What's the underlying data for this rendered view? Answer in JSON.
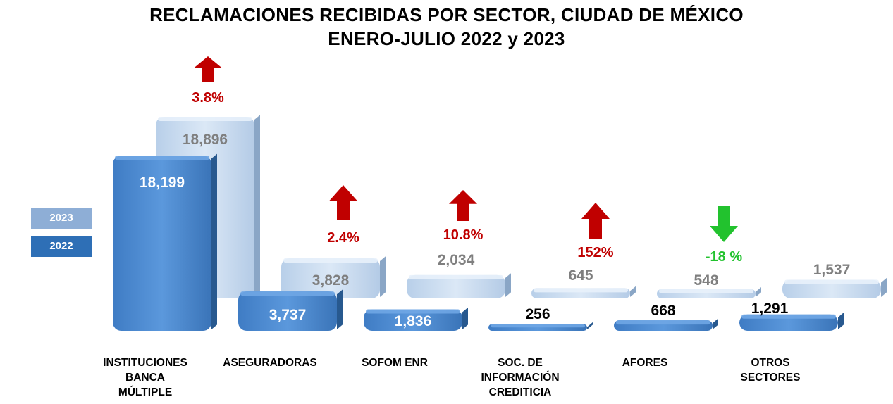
{
  "title": {
    "line1": "RECLAMACIONES RECIBIDAS POR SECTOR, CIUDAD DE MÉXICO",
    "line2": "ENERO-JULIO 2022 y 2023"
  },
  "colors": {
    "y2022": "#4a86cc",
    "y2023": "#c9dcf2",
    "up": "#c00000",
    "down": "#22c22e"
  },
  "chart_data": {
    "type": "bar",
    "title": "RECLAMACIONES RECIBIDAS POR SECTOR, CIUDAD DE MÉXICO ENERO-JULIO 2022 y 2023",
    "categories": [
      "INSTITUCIONES BANCA MÚLTIPLE",
      "ASEGURADORAS",
      "SOFOM ENR",
      "SOC. DE INFORMACIÓN CREDITICIA",
      "AFORES",
      "OTROS SECTORES"
    ],
    "series": [
      {
        "name": "2022",
        "values": [
          18199,
          3737,
          1836,
          256,
          668,
          1291
        ],
        "labels": [
          "18,199",
          "3,737",
          "1,836",
          "256",
          "668",
          "1,291"
        ]
      },
      {
        "name": "2023",
        "values": [
          18896,
          3828,
          2034,
          645,
          548,
          1537
        ],
        "labels": [
          "18,896",
          "3,828",
          "2,034",
          "645",
          "548",
          "1,537"
        ]
      }
    ],
    "changes": [
      {
        "label": "3.8%",
        "direction": "up"
      },
      {
        "label": "2.4%",
        "direction": "up"
      },
      {
        "label": "10.8%",
        "direction": "up"
      },
      {
        "label": "152%",
        "direction": "up"
      },
      {
        "label": "-18 %",
        "direction": "down"
      },
      {
        "label": "",
        "direction": "none"
      }
    ],
    "legend": [
      "2023",
      "2022"
    ],
    "legend_position": "left",
    "xlabel": "",
    "ylabel": "",
    "ylim": [
      0,
      19000
    ],
    "grid": false
  },
  "category_labels": [
    "INSTITUCIONES\nBANCA\nMÚLTIPLE",
    "ASEGURADORAS",
    "SOFOM ENR",
    "SOC. DE\nINFORMACIÓN\nCREDITICIA",
    "AFORES",
    "OTROS\nSECTORES"
  ]
}
